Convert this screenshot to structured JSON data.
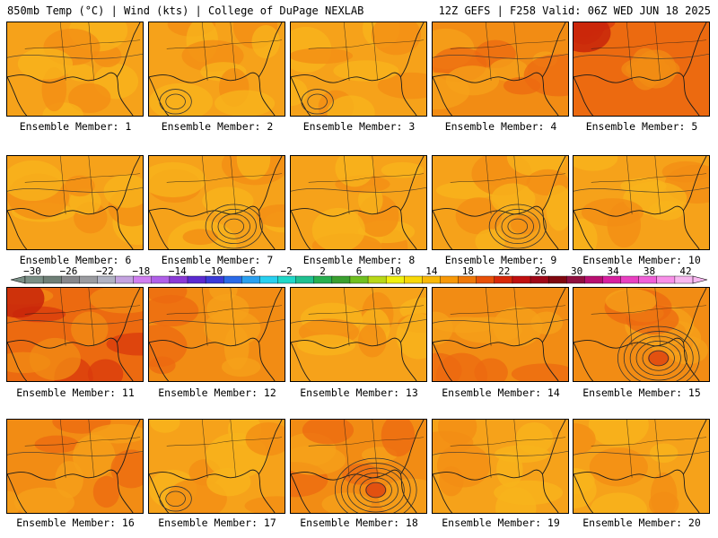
{
  "header": {
    "left": "850mb Temp (°C) | Wind (kts) | College of DuPage NEXLAB",
    "right": "12Z GEFS | F258 Valid: 06Z WED JUN 18 2025"
  },
  "colors": {
    "background_field": "#f6a21a",
    "coastline": "#1a1a1a",
    "isobar": "#333333"
  },
  "panels": [
    {
      "label": "Ensemble Member: 1",
      "field": "orange",
      "feature": "none"
    },
    {
      "label": "Ensemble Member: 2",
      "field": "orange",
      "feature": "weak low west Gulf"
    },
    {
      "label": "Ensemble Member: 3",
      "field": "orange",
      "feature": "weak low west Gulf"
    },
    {
      "label": "Ensemble Member: 4",
      "field": "orange-red",
      "feature": "none"
    },
    {
      "label": "Ensemble Member: 5",
      "field": "red",
      "feature": "none"
    },
    {
      "label": "Ensemble Member: 6",
      "field": "orange",
      "feature": "none"
    },
    {
      "label": "Ensemble Member: 7",
      "field": "orange",
      "feature": "closed low central Gulf"
    },
    {
      "label": "Ensemble Member: 8",
      "field": "orange",
      "feature": "none"
    },
    {
      "label": "Ensemble Member: 9",
      "field": "orange",
      "feature": "closed low central Gulf"
    },
    {
      "label": "Ensemble Member: 10",
      "field": "orange",
      "feature": "none"
    },
    {
      "label": "Ensemble Member: 11",
      "field": "red",
      "feature": "none"
    },
    {
      "label": "Ensemble Member: 12",
      "field": "orange-red",
      "feature": "none"
    },
    {
      "label": "Ensemble Member: 13",
      "field": "orange",
      "feature": "none"
    },
    {
      "label": "Ensemble Member: 14",
      "field": "orange-red",
      "feature": "none"
    },
    {
      "label": "Ensemble Member: 15",
      "field": "orange-red",
      "feature": "deep low central Gulf"
    },
    {
      "label": "Ensemble Member: 16",
      "field": "orange-red",
      "feature": "none"
    },
    {
      "label": "Ensemble Member: 17",
      "field": "orange",
      "feature": "weak low"
    },
    {
      "label": "Ensemble Member: 18",
      "field": "orange-red",
      "feature": "deep low central Gulf"
    },
    {
      "label": "Ensemble Member: 19",
      "field": "orange",
      "feature": "none"
    },
    {
      "label": "Ensemble Member: 20",
      "field": "orange",
      "feature": "none"
    }
  ],
  "colorbar": {
    "labels": [
      "−30",
      "−26",
      "−22",
      "−18",
      "−14",
      "−10",
      "−6",
      "−2",
      "2",
      "6",
      "10",
      "14",
      "18",
      "22",
      "26",
      "30",
      "34",
      "38",
      "42"
    ],
    "colors": [
      "#7a8f86",
      "#6e7f76",
      "#86878b",
      "#9a9ba0",
      "#b0b2c2",
      "#c4a3e0",
      "#d07ef0",
      "#b060e8",
      "#8a3ad6",
      "#5a2ad0",
      "#3a3ad8",
      "#2a6ae8",
      "#2aa0f0",
      "#28d0f0",
      "#20d8c8",
      "#20c090",
      "#28b050",
      "#3aa030",
      "#70c020",
      "#b8d818",
      "#f0f010",
      "#f8d808",
      "#f8b808",
      "#f89808",
      "#f07808",
      "#e85008",
      "#d82808",
      "#c01010",
      "#a00818",
      "#800810",
      "#901040",
      "#b81070",
      "#d820a0",
      "#e840c0",
      "#f060d8",
      "#f890e8",
      "#f8b8f0"
    ]
  }
}
